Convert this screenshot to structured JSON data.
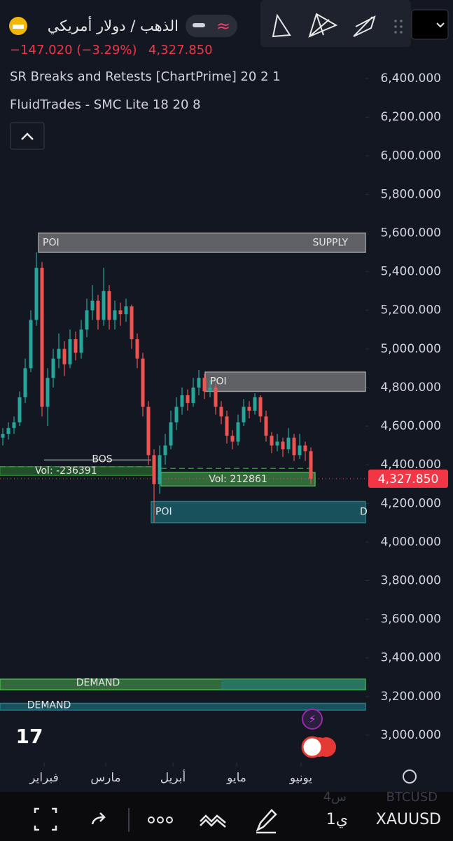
{
  "header": {
    "symbol": "الذهب / دولار أمريكي",
    "change": "−147.020 (−3.29%)",
    "price": "4,327.850",
    "indicators": [
      "SR Breaks and Retests [ChartPrime] 20 2 1",
      "FluidTrades - SMC Lite 18 20 8"
    ]
  },
  "chart_data": {
    "type": "candlestick",
    "categories": [
      "فبراير",
      "مارس",
      "أبريل",
      "مايو",
      "يونيو"
    ],
    "ohlc": [
      [
        4540,
        4590,
        4500,
        4560
      ],
      [
        4560,
        4620,
        4530,
        4590
      ],
      [
        4590,
        4650,
        4560,
        4620
      ],
      [
        4620,
        4780,
        4600,
        4750
      ],
      [
        4750,
        4950,
        4720,
        4900
      ],
      [
        4900,
        5200,
        4880,
        5150
      ],
      [
        5150,
        5500,
        5120,
        5420
      ],
      [
        5420,
        5450,
        4650,
        4700
      ],
      [
        4700,
        4900,
        4600,
        4850
      ],
      [
        4850,
        5000,
        4800,
        4950
      ],
      [
        4950,
        5080,
        4900,
        5000
      ],
      [
        5000,
        5040,
        4860,
        4920
      ],
      [
        4920,
        5100,
        4900,
        5050
      ],
      [
        5050,
        5090,
        4940,
        4980
      ],
      [
        4980,
        5150,
        4950,
        5100
      ],
      [
        5100,
        5260,
        5060,
        5200
      ],
      [
        5200,
        5330,
        5150,
        5250
      ],
      [
        5250,
        5280,
        5100,
        5150
      ],
      [
        5150,
        5420,
        5120,
        5300
      ],
      [
        5300,
        5330,
        5100,
        5150
      ],
      [
        5150,
        5250,
        5100,
        5200
      ],
      [
        5200,
        5240,
        5120,
        5180
      ],
      [
        5180,
        5260,
        5140,
        5220
      ],
      [
        5220,
        5230,
        5000,
        5050
      ],
      [
        5050,
        5080,
        4900,
        4950
      ],
      [
        4950,
        4980,
        4650,
        4700
      ],
      [
        4700,
        4730,
        4400,
        4450
      ],
      [
        4450,
        4480,
        4100,
        4300
      ],
      [
        4300,
        4500,
        4250,
        4450
      ],
      [
        4450,
        4560,
        4400,
        4500
      ],
      [
        4500,
        4680,
        4480,
        4620
      ],
      [
        4620,
        4750,
        4580,
        4700
      ],
      [
        4700,
        4800,
        4660,
        4760
      ],
      [
        4760,
        4790,
        4680,
        4720
      ],
      [
        4720,
        4850,
        4700,
        4800
      ],
      [
        4800,
        4890,
        4760,
        4850
      ],
      [
        4850,
        4870,
        4740,
        4780
      ],
      [
        4780,
        4840,
        4750,
        4800
      ],
      [
        4800,
        4820,
        4660,
        4700
      ],
      [
        4700,
        4730,
        4610,
        4650
      ],
      [
        4650,
        4680,
        4510,
        4550
      ],
      [
        4550,
        4580,
        4480,
        4520
      ],
      [
        4520,
        4660,
        4500,
        4620
      ],
      [
        4620,
        4740,
        4600,
        4700
      ],
      [
        4700,
        4730,
        4640,
        4680
      ],
      [
        4680,
        4770,
        4660,
        4750
      ],
      [
        4750,
        4760,
        4620,
        4650
      ],
      [
        4650,
        4680,
        4520,
        4550
      ],
      [
        4550,
        4570,
        4460,
        4500
      ],
      [
        4500,
        4560,
        4470,
        4520
      ],
      [
        4520,
        4540,
        4440,
        4480
      ],
      [
        4480,
        4590,
        4460,
        4540
      ],
      [
        4540,
        4560,
        4420,
        4450
      ],
      [
        4450,
        4560,
        4430,
        4500
      ],
      [
        4500,
        4520,
        4420,
        4470
      ],
      [
        4470,
        4490,
        4300,
        4327.85
      ]
    ],
    "ylim": [
      2850,
      6800
    ],
    "yticks": [
      {
        "value": 3000,
        "label": "3,000.000"
      },
      {
        "value": 3200,
        "label": "3,200.000"
      },
      {
        "value": 3400,
        "label": "3,400.000"
      },
      {
        "value": 3600,
        "label": "3,600.000"
      },
      {
        "value": 3800,
        "label": "3,800.000"
      },
      {
        "value": 4000,
        "label": "4,000.000"
      },
      {
        "value": 4200,
        "label": "4,200.000"
      },
      {
        "value": 4400,
        "label": "4,400.000"
      },
      {
        "value": 4600,
        "label": "4,600.000"
      },
      {
        "value": 4800,
        "label": "4,800.000"
      },
      {
        "value": 5000,
        "label": "5,000.000"
      },
      {
        "value": 5200,
        "label": "5,200.000"
      },
      {
        "value": 5400,
        "label": "5,400.000"
      },
      {
        "value": 5600,
        "label": "5,600.000"
      },
      {
        "value": 5800,
        "label": "5,800.000"
      },
      {
        "value": 6000,
        "label": "6,000.000"
      },
      {
        "value": 6200,
        "label": "6,200.000"
      },
      {
        "value": 6400,
        "label": "6,400.000"
      }
    ],
    "last_price": {
      "value": 4327.85,
      "label": "4,327.850"
    },
    "colors": {
      "up": "#26a69a",
      "down": "#ef5350"
    },
    "zones": [
      {
        "labels": [
          "POI",
          "SUPPLY"
        ],
        "top": 5600,
        "bottom": 5500,
        "color": "#9e9e9e"
      },
      {
        "labels": [
          "POI"
        ],
        "top": 4880,
        "bottom": 4780,
        "color": "#9e9e9e"
      },
      {
        "labels": [
          "Vol: 212861"
        ],
        "top": 4360,
        "bottom": 4290,
        "color": "#4caf50"
      },
      {
        "labels": [
          "Vol: -236391"
        ],
        "top": 4390,
        "bottom": 4345,
        "color": "#2e7d32"
      },
      {
        "labels": [
          "POI",
          "D"
        ],
        "top": 4210,
        "bottom": 4100,
        "color": "#1e7f8a"
      },
      {
        "labels": [
          "DEMAND"
        ],
        "top": 3290,
        "bottom": 3235,
        "color": "#4caf50"
      },
      {
        "labels": [
          "DEMAND"
        ],
        "top": 3165,
        "bottom": 3130,
        "color": "#1e7f8a"
      }
    ],
    "bos": {
      "label": "BOS",
      "value": 4425
    }
  },
  "footer": {
    "symbol": "XAUUSD",
    "interval": "1ي",
    "watch_symbol": "BTCUSD",
    "watch_interval": "4س"
  }
}
